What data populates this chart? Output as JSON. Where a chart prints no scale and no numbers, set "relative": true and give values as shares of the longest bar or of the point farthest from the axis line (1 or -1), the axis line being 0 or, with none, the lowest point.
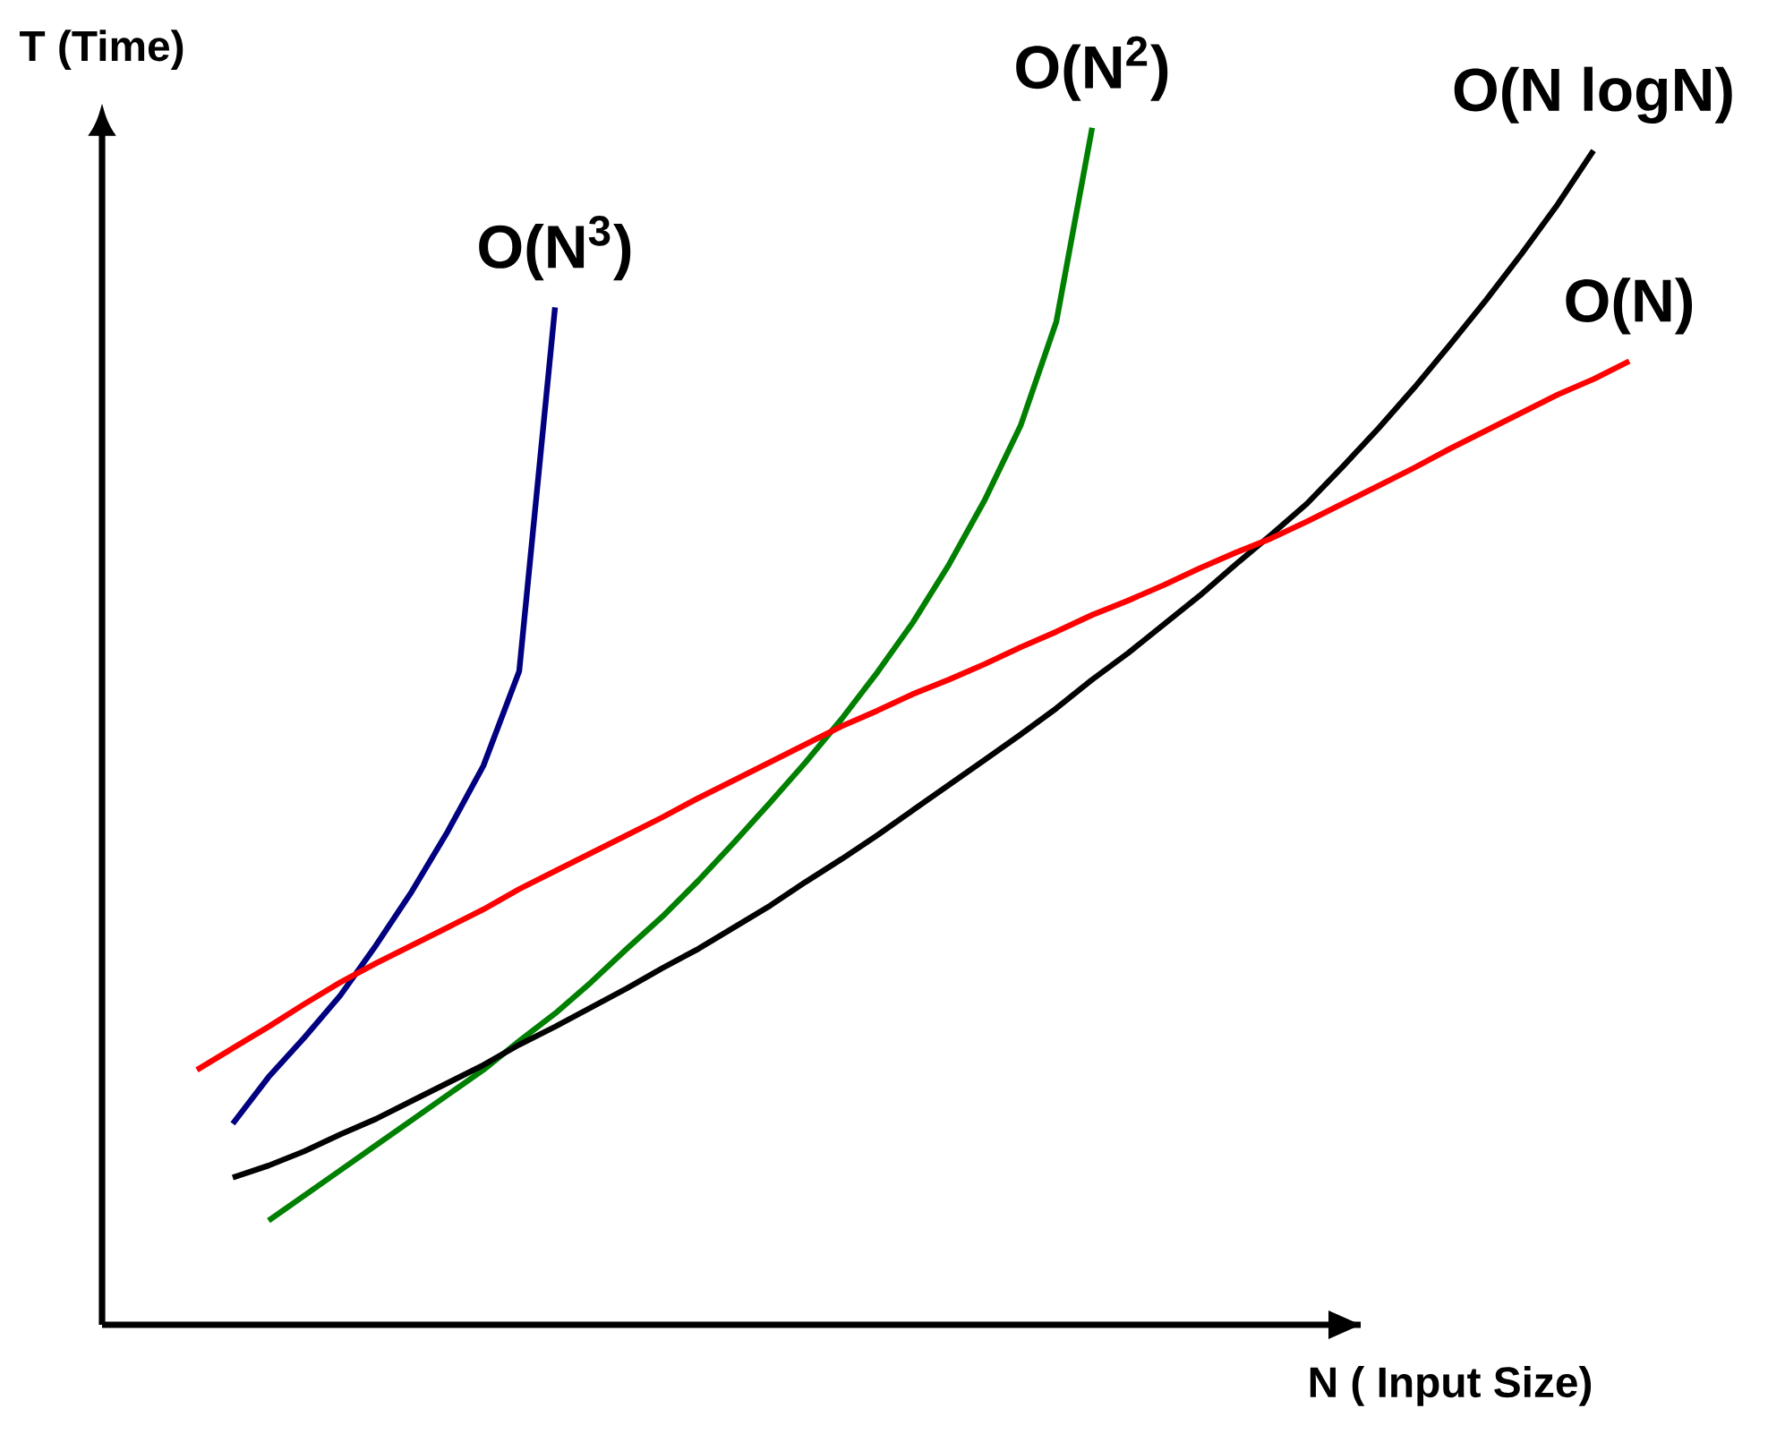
{
  "chart_data": {
    "type": "line",
    "relative": true,
    "xlabel": "N ( Input Size)",
    "ylabel": "T (Time)",
    "categories": [
      null,
      null,
      null,
      null,
      null,
      null,
      null,
      null,
      null,
      null,
      null,
      null,
      null,
      null,
      null,
      null,
      null,
      null,
      null,
      null,
      null,
      null,
      null,
      null,
      null,
      null,
      null,
      null,
      null,
      null,
      null,
      null,
      null,
      null,
      null,
      null,
      null,
      null,
      null,
      null,
      null
    ],
    "series": [
      {
        "name": "O(N$^{3}$)",
        "color": "#000080",
        "values": [
          null,
          0.168,
          0.207,
          0.24,
          0.275,
          0.317,
          0.362,
          0.412,
          0.467,
          0.546,
          0.85,
          null,
          null,
          null,
          null,
          null,
          null,
          null,
          null,
          null,
          null,
          null,
          null,
          null,
          null,
          null,
          null,
          null,
          null,
          null,
          null,
          null,
          null,
          null,
          null,
          null,
          null,
          null,
          null,
          null,
          null
        ]
      },
      {
        "name": "O(N$^{2}$)",
        "color": "#008000",
        "values": [
          null,
          null,
          0.087,
          0.108,
          0.129,
          0.15,
          0.171,
          0.192,
          0.213,
          0.237,
          0.26,
          0.286,
          0.314,
          0.341,
          0.371,
          0.403,
          0.436,
          0.47,
          0.506,
          0.545,
          0.587,
          0.635,
          0.689,
          0.751,
          0.838,
          1.0,
          null,
          null,
          null,
          null,
          null,
          null,
          null,
          null,
          null,
          null,
          null,
          null,
          null,
          null,
          null
        ]
      },
      {
        "name": "O(N logN)",
        "color": "#000000",
        "values": [
          null,
          0.123,
          0.133,
          0.145,
          0.159,
          0.172,
          0.187,
          0.202,
          0.217,
          0.234,
          0.249,
          0.265,
          0.281,
          0.298,
          0.314,
          0.332,
          0.35,
          0.37,
          0.389,
          0.409,
          0.43,
          0.451,
          0.472,
          0.493,
          0.515,
          0.539,
          0.561,
          0.585,
          0.609,
          0.635,
          0.66,
          0.686,
          0.717,
          0.749,
          0.783,
          0.819,
          0.856,
          0.895,
          0.936,
          0.981,
          null
        ]
      },
      {
        "name": "O(N)",
        "color": "#ff0000",
        "values": [
          0.213,
          0.231,
          0.249,
          0.268,
          0.286,
          0.302,
          0.317,
          0.332,
          0.347,
          0.364,
          0.379,
          0.394,
          0.409,
          0.424,
          0.44,
          0.455,
          0.47,
          0.485,
          0.5,
          0.513,
          0.527,
          0.539,
          0.552,
          0.566,
          0.579,
          0.593,
          0.605,
          0.618,
          0.632,
          0.645,
          0.657,
          0.671,
          0.686,
          0.701,
          0.716,
          0.732,
          0.747,
          0.762,
          0.777,
          0.79,
          0.805
        ]
      }
    ]
  }
}
